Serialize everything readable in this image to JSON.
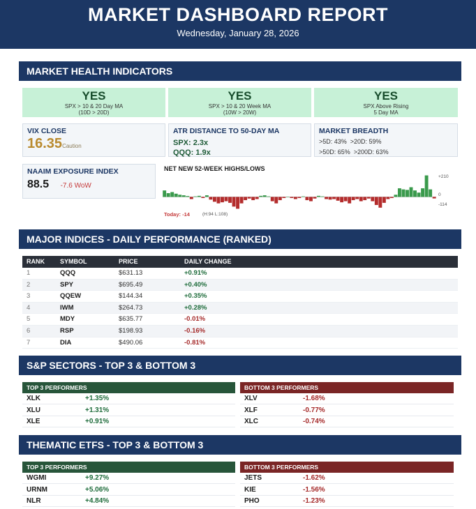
{
  "header": {
    "title": "MARKET DASHBOARD REPORT",
    "date": "Wednesday, January 28, 2026"
  },
  "health": {
    "section_title": "MARKET HEALTH INDICATORS",
    "yes_boxes": [
      {
        "value": "YES",
        "line1": "SPX > 10 & 20 Day MA",
        "line2": "(10D > 20D)"
      },
      {
        "value": "YES",
        "line1": "SPX > 10 & 20 Week MA",
        "line2": "(10W > 20W)"
      },
      {
        "value": "YES",
        "line1": "SPX Above Rising",
        "line2": "5 Day MA"
      }
    ],
    "vix": {
      "label": "VIX CLOSE",
      "value": "16.35",
      "status": "Caution"
    },
    "atr": {
      "label": "ATR DISTANCE TO 50-DAY MA",
      "spx": "SPX: 2.3x",
      "qqq": "QQQ: 1.9x"
    },
    "breadth": {
      "label": "MARKET BREADTH",
      "line1": ">5D: 43%  >20D: 59%",
      "line2": ">50D: 65%  >200D: 63%"
    },
    "naaim": {
      "label": "NAAIM EXPOSURE INDEX",
      "value": "88.5",
      "change": "-7.6 WoW"
    },
    "highs_lows": {
      "title": "NET NEW 52-WEEK HIGHS/LOWS",
      "axis_top": "+210",
      "axis_zero": "0",
      "axis_bottom": "-114",
      "today": "Today: -14",
      "info": "(H:94 L:108)"
    }
  },
  "chart_data": {
    "type": "bar",
    "title": "NET NEW 52-WEEK HIGHS/LOWS",
    "ylim": [
      -114,
      210
    ],
    "values": [
      60,
      35,
      45,
      30,
      20,
      15,
      8,
      -20,
      5,
      10,
      -10,
      15,
      -25,
      -45,
      -60,
      -50,
      -40,
      -55,
      -90,
      -110,
      -60,
      -30,
      -15,
      -30,
      -20,
      10,
      15,
      5,
      -40,
      -60,
      -30,
      -10,
      0,
      -10,
      -20,
      -10,
      5,
      -30,
      -40,
      -15,
      10,
      5,
      -20,
      -25,
      -20,
      -35,
      -50,
      -40,
      -60,
      -30,
      -20,
      -40,
      -30,
      -15,
      -40,
      -75,
      -100,
      -55,
      -20,
      -10,
      20,
      80,
      70,
      65,
      90,
      60,
      40,
      80,
      200,
      70,
      -14
    ],
    "today": -14,
    "highs": 94,
    "lows": 108,
    "positive_color": "#3a9a4c",
    "negative_color": "#b42c2c"
  },
  "indices": {
    "section_title": "MAJOR INDICES - DAILY PERFORMANCE (RANKED)",
    "columns": [
      "RANK",
      "SYMBOL",
      "PRICE",
      "DAILY CHANGE"
    ],
    "rows": [
      {
        "rank": "1",
        "symbol": "QQQ",
        "price": "$631.13",
        "change": "+0.91%",
        "dir": "pos"
      },
      {
        "rank": "2",
        "symbol": "SPY",
        "price": "$695.49",
        "change": "+0.40%",
        "dir": "pos"
      },
      {
        "rank": "3",
        "symbol": "QQEW",
        "price": "$144.34",
        "change": "+0.35%",
        "dir": "pos"
      },
      {
        "rank": "4",
        "symbol": "IWM",
        "price": "$264.73",
        "change": "+0.28%",
        "dir": "pos"
      },
      {
        "rank": "5",
        "symbol": "MDY",
        "price": "$635.77",
        "change": "-0.01%",
        "dir": "neg"
      },
      {
        "rank": "6",
        "symbol": "RSP",
        "price": "$198.93",
        "change": "-0.16%",
        "dir": "neg"
      },
      {
        "rank": "7",
        "symbol": "DIA",
        "price": "$490.06",
        "change": "-0.81%",
        "dir": "neg"
      }
    ]
  },
  "sectors": {
    "section_title": "S&P SECTORS - TOP 3 & BOTTOM 3",
    "top_label": "TOP 3 PERFORMERS",
    "bottom_label": "BOTTOM 3 PERFORMERS",
    "top": [
      {
        "symbol": "XLK",
        "change": "+1.35%"
      },
      {
        "symbol": "XLU",
        "change": "+1.31%"
      },
      {
        "symbol": "XLE",
        "change": "+0.91%"
      }
    ],
    "bottom": [
      {
        "symbol": "XLV",
        "change": "-1.68%"
      },
      {
        "symbol": "XLF",
        "change": "-0.77%"
      },
      {
        "symbol": "XLC",
        "change": "-0.74%"
      }
    ]
  },
  "thematic": {
    "section_title": "THEMATIC ETFS - TOP 3 & BOTTOM 3",
    "top_label": "TOP 3 PERFORMERS",
    "bottom_label": "BOTTOM 3 PERFORMERS",
    "top": [
      {
        "symbol": "WGMI",
        "change": "+9.27%"
      },
      {
        "symbol": "URNM",
        "change": "+5.06%"
      },
      {
        "symbol": "NLR",
        "change": "+4.84%"
      }
    ],
    "bottom": [
      {
        "symbol": "JETS",
        "change": "-1.62%"
      },
      {
        "symbol": "KIE",
        "change": "-1.56%"
      },
      {
        "symbol": "PHO",
        "change": "-1.23%"
      }
    ]
  }
}
